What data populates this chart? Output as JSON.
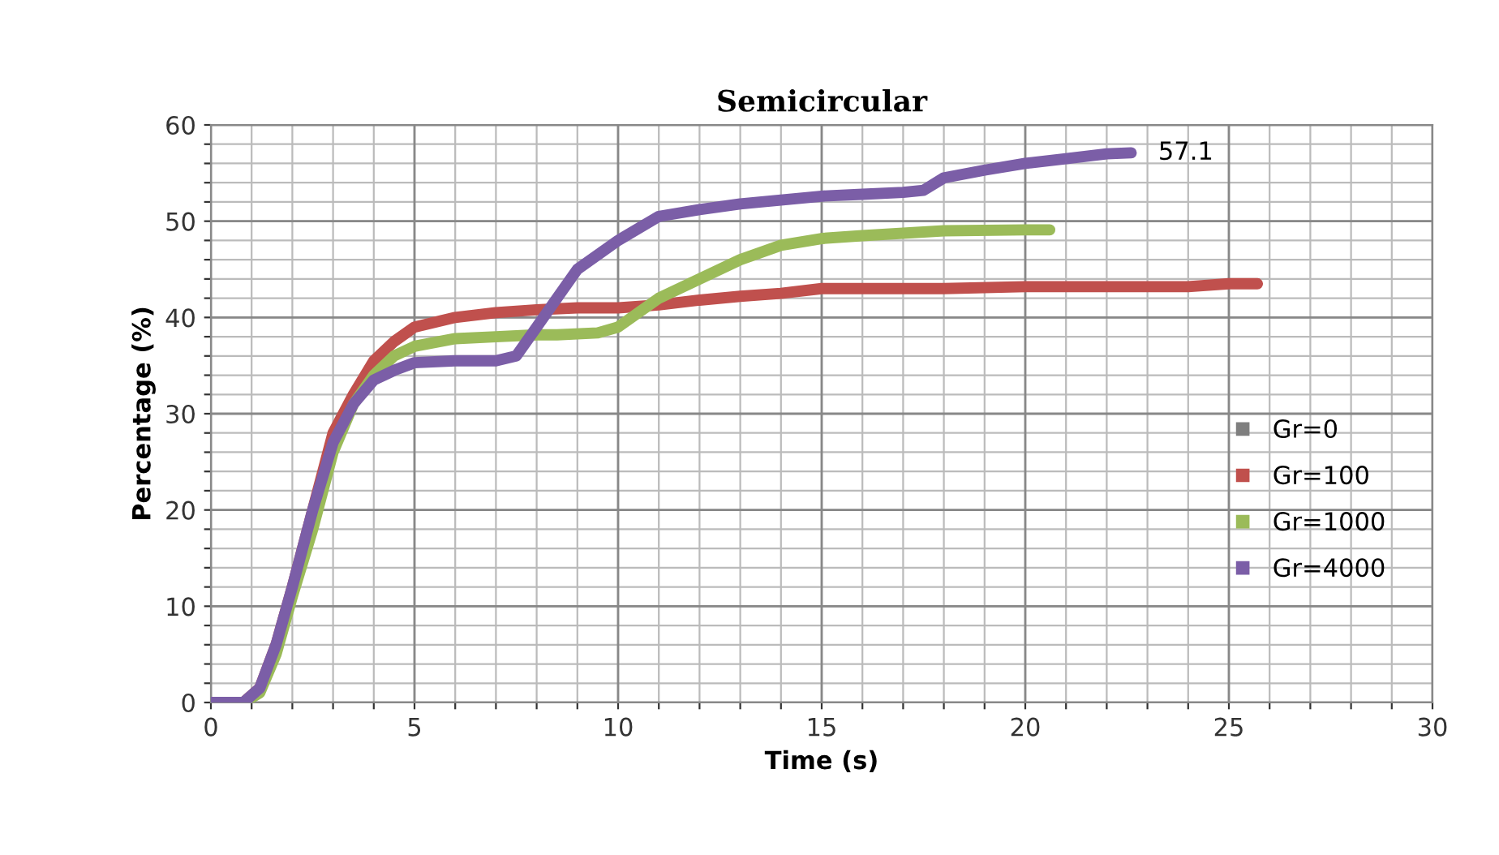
{
  "chart_data": {
    "type": "line",
    "title": "Semicircular",
    "xlabel": "Time (s)",
    "ylabel": "Percentage (%)",
    "xlim": [
      0,
      30
    ],
    "ylim": [
      0,
      60
    ],
    "xticks": [
      0,
      {
        "value": 1,
        "label": null
      },
      {
        "value": 2,
        "label": null
      },
      {
        "value": 3,
        "label": null
      },
      {
        "value": 4,
        "label": null
      },
      5,
      {
        "value": 6,
        "label": null
      },
      {
        "value": 7,
        "label": null
      },
      {
        "value": 8,
        "label": null
      },
      {
        "value": 9,
        "label": null
      },
      10,
      {
        "value": 11,
        "label": null
      },
      {
        "value": 12,
        "label": null
      },
      {
        "value": 13,
        "label": null
      },
      {
        "value": 14,
        "label": null
      },
      15,
      {
        "value": 16,
        "label": null
      },
      {
        "value": 17,
        "label": null
      },
      {
        "value": 18,
        "label": null
      },
      {
        "value": 19,
        "label": null
      },
      20,
      {
        "value": 21,
        "label": null
      },
      {
        "value": 22,
        "label": null
      },
      {
        "value": 23,
        "label": null
      },
      {
        "value": 24,
        "label": null
      },
      25,
      {
        "value": 26,
        "label": null
      },
      {
        "value": 27,
        "label": null
      },
      {
        "value": 28,
        "label": null
      },
      {
        "value": 29,
        "label": null
      },
      30
    ],
    "yticks": [
      0,
      {
        "value": 2,
        "label": null
      },
      {
        "value": 4,
        "label": null
      },
      {
        "value": 6,
        "label": null
      },
      {
        "value": 8,
        "label": null
      },
      10,
      {
        "value": 12,
        "label": null
      },
      {
        "value": 14,
        "label": null
      },
      {
        "value": 16,
        "label": null
      },
      {
        "value": 18,
        "label": null
      },
      20,
      {
        "value": 22,
        "label": null
      },
      {
        "value": 24,
        "label": null
      },
      {
        "value": 26,
        "label": null
      },
      {
        "value": 28,
        "label": null
      },
      30,
      {
        "value": 32,
        "label": null
      },
      {
        "value": 34,
        "label": null
      },
      {
        "value": 36,
        "label": null
      },
      {
        "value": 38,
        "label": null
      },
      40,
      {
        "value": 42,
        "label": null
      },
      {
        "value": 44,
        "label": null
      },
      {
        "value": 46,
        "label": null
      },
      {
        "value": 48,
        "label": null
      },
      50,
      {
        "value": 52,
        "label": null
      },
      {
        "value": 54,
        "label": null
      },
      {
        "value": 56,
        "label": null
      },
      {
        "value": 58,
        "label": null
      },
      60
    ],
    "grid": true,
    "legend": "right",
    "line_style": "solid",
    "marker": "none",
    "series": [
      {
        "name": "Gr=0",
        "color": "#7f7f7f"
      },
      {
        "name": "Gr=100",
        "color": "#c0504d",
        "x": [
          0,
          0.8,
          1.2,
          1.6,
          2,
          2.5,
          3,
          3.5,
          4,
          4.5,
          5,
          6,
          7,
          8,
          9,
          10,
          11,
          12,
          13,
          14,
          15,
          16,
          18,
          20,
          22,
          24,
          25,
          25.7
        ],
        "values": [
          0,
          0,
          1.5,
          6,
          12,
          20,
          28,
          32,
          35.5,
          37.5,
          39,
          40,
          40.5,
          40.8,
          41,
          41,
          41.3,
          41.8,
          42.2,
          42.5,
          43,
          43,
          43,
          43.2,
          43.2,
          43.2,
          43.5,
          43.5
        ]
      },
      {
        "name": "Gr=1000",
        "color": "#9bbb59",
        "x": [
          0,
          0.8,
          1.2,
          1.6,
          2,
          2.5,
          3,
          3.5,
          4,
          4.5,
          5,
          6,
          7,
          8,
          8.5,
          9.5,
          10,
          10.5,
          11,
          12,
          13,
          14,
          15,
          16,
          18,
          20,
          20.6
        ],
        "values": [
          0,
          0,
          1,
          5,
          11,
          18,
          26,
          31,
          34,
          36,
          37,
          37.8,
          38,
          38.2,
          38.2,
          38.4,
          39,
          40.5,
          42,
          44,
          46,
          47.5,
          48.2,
          48.5,
          49,
          49.1,
          49.1
        ]
      },
      {
        "name": "Gr=4000",
        "color": "#7b5ea7",
        "x": [
          0,
          0.8,
          1.2,
          1.6,
          2,
          2.5,
          3,
          3.5,
          4,
          4.5,
          5,
          6,
          7,
          7.5,
          8,
          8.5,
          9,
          10,
          11,
          12,
          13,
          14,
          15,
          16,
          17,
          17.5,
          18,
          19,
          20,
          21,
          22,
          22.6
        ],
        "values": [
          0,
          0,
          1.5,
          6,
          12,
          20,
          27,
          31,
          33.5,
          34.5,
          35.3,
          35.5,
          35.5,
          36,
          39,
          42,
          45,
          48,
          50.5,
          51.2,
          51.8,
          52.2,
          52.6,
          52.8,
          53,
          53.2,
          54.5,
          55.3,
          56,
          56.5,
          57,
          57.1
        ],
        "value_labels": [
          null,
          null,
          null,
          null,
          null,
          null,
          null,
          null,
          null,
          null,
          null,
          null,
          null,
          null,
          null,
          null,
          null,
          null,
          null,
          null,
          null,
          null,
          null,
          null,
          null,
          null,
          null,
          null,
          null,
          null,
          null,
          "57.1"
        ]
      }
    ]
  }
}
